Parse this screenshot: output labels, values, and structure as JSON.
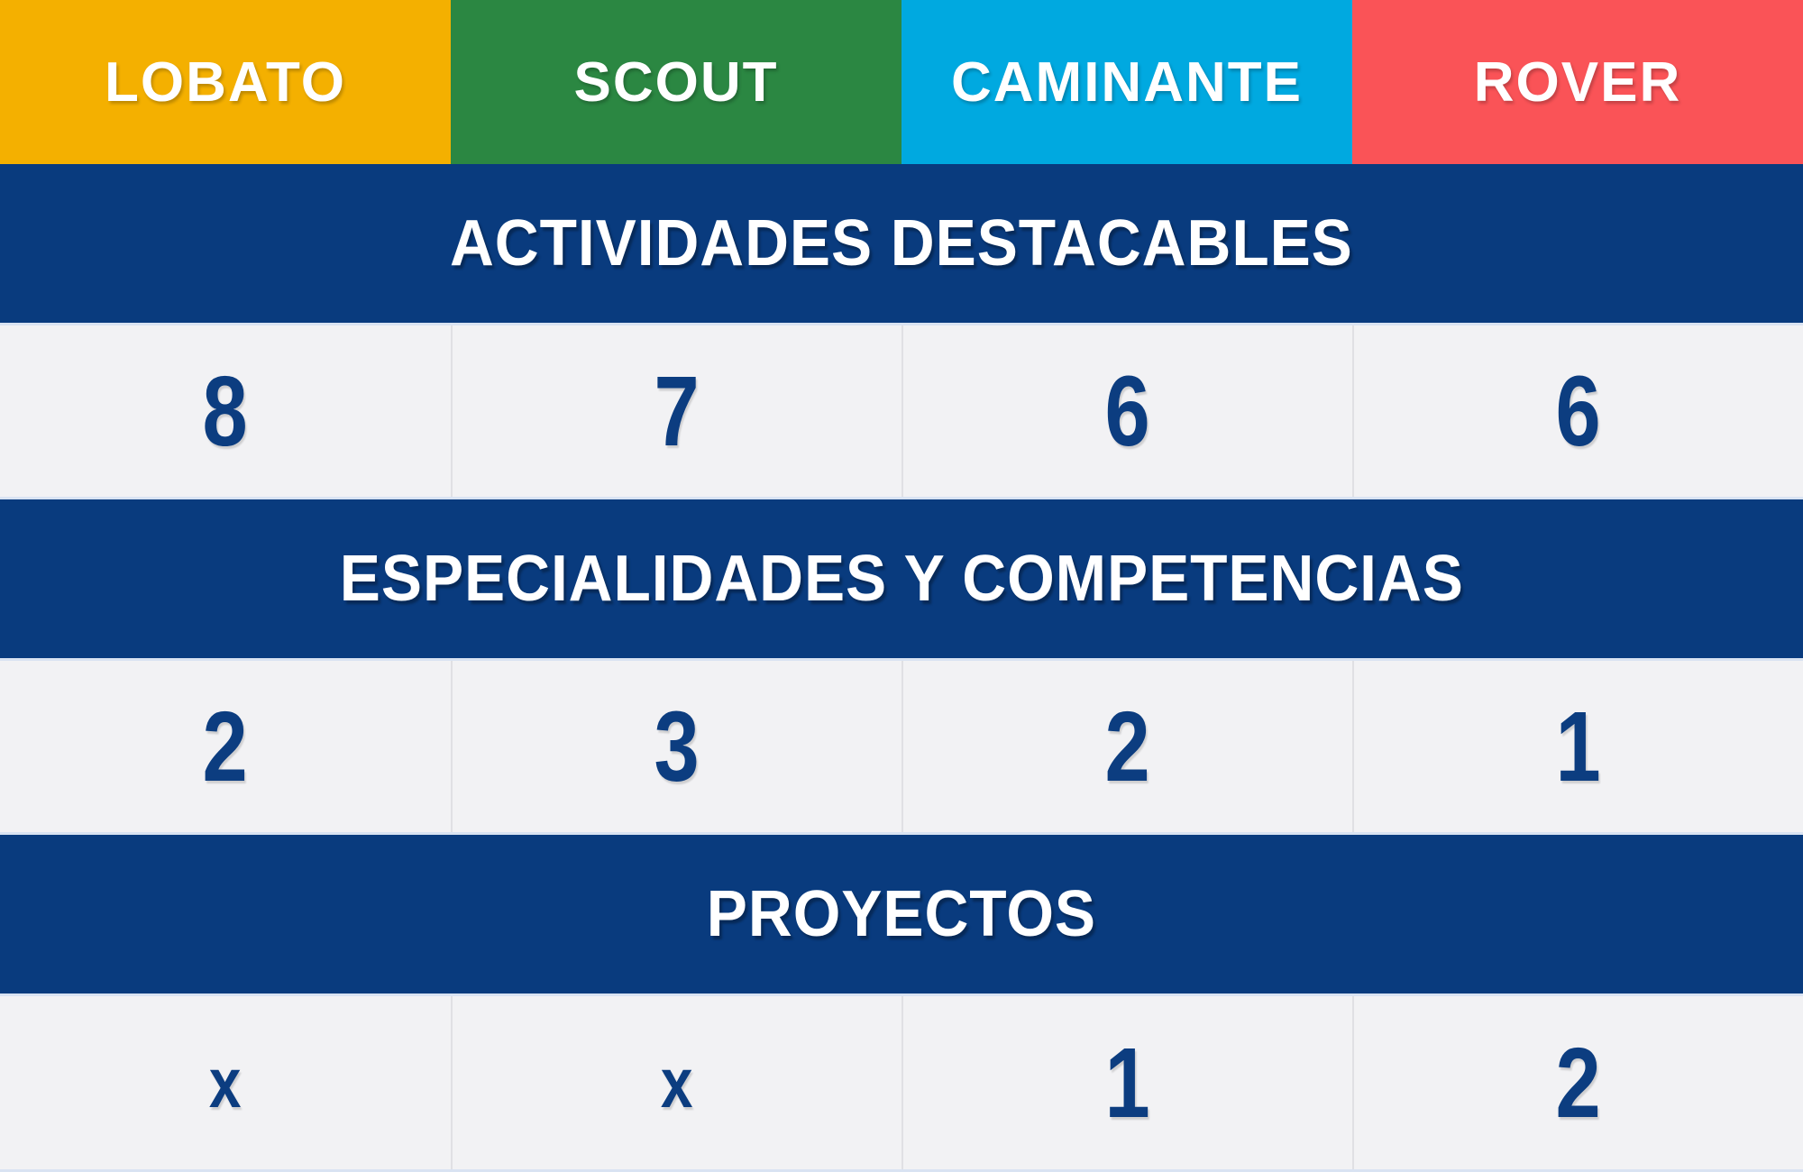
{
  "table": {
    "columns": [
      {
        "label": "LOBATO",
        "color": "#F4B000"
      },
      {
        "label": "SCOUT",
        "color": "#2B8742"
      },
      {
        "label": "CAMINANTE",
        "color": "#00A9E0"
      },
      {
        "label": "ROVER",
        "color": "#FA5357"
      }
    ],
    "sections": [
      {
        "title": "ACTIVIDADES DESTACABLES",
        "values": [
          "8",
          "7",
          "6",
          "6"
        ]
      },
      {
        "title": "ESPECIALIDADES Y COMPETENCIAS",
        "values": [
          "2",
          "3",
          "2",
          "1"
        ]
      },
      {
        "title": "PROYECTOS",
        "values": [
          "x",
          "x",
          "1",
          "2"
        ]
      }
    ],
    "colors": {
      "banner_bg": "#093B7E",
      "value_text": "#0C3D80",
      "row_bg": "#F2F2F4"
    }
  },
  "chart_data": {
    "type": "table",
    "title": "",
    "columns": [
      "LOBATO",
      "SCOUT",
      "CAMINANTE",
      "ROVER"
    ],
    "column_colors": [
      "#F4B000",
      "#2B8742",
      "#00A9E0",
      "#FA5357"
    ],
    "rows": [
      {
        "label": "ACTIVIDADES DESTACABLES",
        "values": [
          "8",
          "7",
          "6",
          "6"
        ]
      },
      {
        "label": "ESPECIALIDADES Y COMPETENCIAS",
        "values": [
          "2",
          "3",
          "2",
          "1"
        ]
      },
      {
        "label": "PROYECTOS",
        "values": [
          "x",
          "x",
          "1",
          "2"
        ]
      }
    ]
  }
}
